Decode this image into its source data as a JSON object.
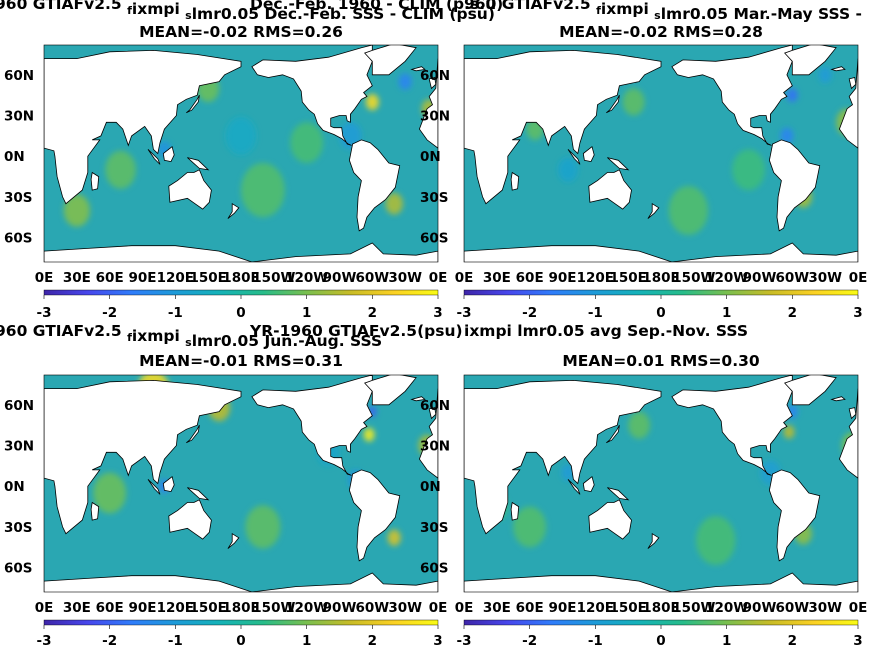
{
  "colors": {
    "ocean": "#2aa7b2",
    "land": "#ffffff",
    "coast": "#000000",
    "colormap": [
      "#3e26a8",
      "#4746eb",
      "#2f7cfa",
      "#1d9bd8",
      "#15b2b8",
      "#27bc8a",
      "#79bf4f",
      "#c8bc27",
      "#fbd124",
      "#f9fb14"
    ]
  },
  "chart_data": [
    {
      "type": "heatmap",
      "title_prefix": "960 GTIAFv2.5",
      "title_sub": "f",
      "title_mid": "ixmpi",
      "title_sub2": "s",
      "title_tail": "lmr0.05  Dec.-Feb. SSS - CLIM (psu)",
      "overlap_text": "Dec.-Feb. 1960 - CLIM (p.s.u)",
      "stats": "MEAN=-0.02   RMS=0.26",
      "x_ticks": [
        "0E",
        "30E",
        "60E",
        "90E",
        "120E",
        "150E",
        "180E",
        "150W",
        "120W",
        "90W",
        "60W",
        "30W",
        "0E"
      ],
      "y_ticks": [
        "60N",
        "30N",
        "0N",
        "30S",
        "60S"
      ],
      "colorbar_ticks": [
        "-3",
        "-2",
        "-1",
        "0",
        "1",
        "2",
        "3"
      ],
      "clim": [
        -3,
        3
      ],
      "mean": -0.02,
      "rms": 0.26
    },
    {
      "type": "heatmap",
      "title_prefix": "960 GTIAFv2.5",
      "title_sub": "f",
      "title_mid": "ixmpi",
      "title_sub2": "s",
      "title_tail": "lmr0.05 Mar.-May SSS -",
      "stats": "MEAN=-0.02   RMS=0.28",
      "x_ticks": [
        "0E",
        "30E",
        "60E",
        "90E",
        "120E",
        "150E",
        "180E",
        "150W",
        "120W",
        "90W",
        "60W",
        "30W",
        "0E"
      ],
      "y_ticks": [
        "60N",
        "30N",
        "0N",
        "30S",
        "60S"
      ],
      "colorbar_ticks": [
        "-3",
        "-2",
        "-1",
        "0",
        "1",
        "2",
        "3"
      ],
      "clim": [
        -3,
        3
      ],
      "mean": -0.02,
      "rms": 0.28
    },
    {
      "type": "heatmap",
      "title_prefix": "960 GTIAFv2.5",
      "title_sub": "f",
      "title_mid": "ixmpi",
      "title_sub2": "s",
      "title_tail": "lmr0.05 Jun.-Aug. SSS",
      "overlap_text": "YR-1960 GTIAFv2.5(psu)",
      "stats": "MEAN=-0.01   RMS=0.31",
      "x_ticks": [
        "0E",
        "30E",
        "60E",
        "90E",
        "120E",
        "150E",
        "180E",
        "150W",
        "120W",
        "90W",
        "60W",
        "30W",
        "0E"
      ],
      "y_ticks": [
        "60N",
        "30N",
        "0N",
        "30S",
        "60S"
      ],
      "colorbar_ticks": [
        "-3",
        "-2",
        "-1",
        "0",
        "1",
        "2",
        "3"
      ],
      "clim": [
        -3,
        3
      ],
      "mean": -0.01,
      "rms": 0.31
    },
    {
      "type": "heatmap",
      "title_prefix": "",
      "title_sub": "",
      "title_mid": "",
      "title_sub2": "",
      "title_tail": "ixmpi lmr0.05 avg Sep.-Nov. SSS",
      "stats": "MEAN=0.01   RMS=0.30",
      "x_ticks": [
        "0E",
        "30E",
        "60E",
        "90E",
        "120E",
        "150E",
        "180E",
        "150W",
        "120W",
        "90W",
        "60W",
        "30W",
        "0E"
      ],
      "y_ticks": [
        "60N",
        "30N",
        "0N",
        "30S",
        "60S"
      ],
      "colorbar_ticks": [
        "-3",
        "-2",
        "-1",
        "0",
        "1",
        "2",
        "3"
      ],
      "clim": [
        -3,
        3
      ],
      "mean": 0.01,
      "rms": 0.3
    }
  ]
}
